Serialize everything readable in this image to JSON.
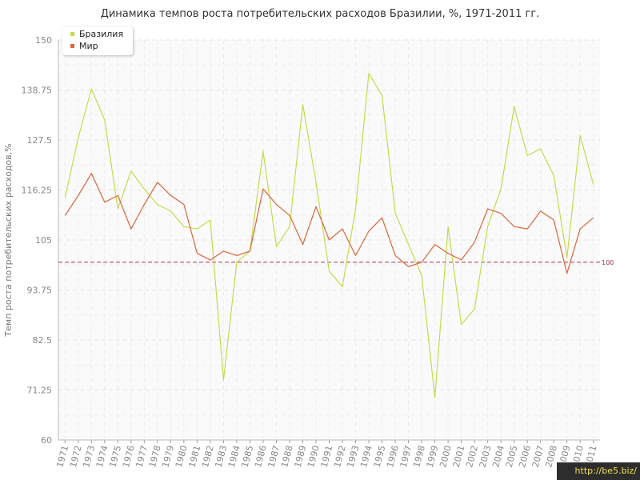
{
  "chart_data": {
    "type": "line",
    "title": "Динамика темпов роста потребительских расходов Бразилии, %, 1971-2011 гг.",
    "ylabel": "Темп роста потребительских расходов,%",
    "xlabel": "",
    "ylim": [
      60,
      150
    ],
    "yticks": [
      "60",
      "71.25",
      "82.5",
      "93.75",
      "105",
      "116.25",
      "127.5",
      "138.75",
      "150"
    ],
    "x": [
      "1971",
      "1972",
      "1973",
      "1974",
      "1975",
      "1976",
      "1977",
      "1978",
      "1979",
      "1980",
      "1981",
      "1982",
      "1983",
      "1984",
      "1985",
      "1986",
      "1987",
      "1988",
      "1989",
      "1990",
      "1991",
      "1992",
      "1993",
      "1994",
      "1995",
      "1996",
      "1997",
      "1998",
      "1999",
      "2000",
      "2001",
      "2002",
      "2003",
      "2004",
      "2005",
      "2006",
      "2007",
      "2008",
      "2009",
      "2010",
      "2011"
    ],
    "series": [
      {
        "name": "Бразилия",
        "color": "#c4dc4a",
        "values": [
          114.5,
          128,
          139,
          132,
          112,
          120.5,
          116.5,
          113,
          111.5,
          108,
          107.5,
          109.5,
          73.5,
          100,
          102.5,
          125,
          103.5,
          108,
          135.5,
          118,
          98,
          94.5,
          112,
          142.5,
          137.5,
          111,
          104,
          97,
          69.5,
          108,
          86,
          89.5,
          108,
          116.5,
          135,
          124,
          125.5,
          119.5,
          101,
          128.5,
          117.5
        ]
      },
      {
        "name": "Мир",
        "color": "#e0653a",
        "values": [
          110.5,
          115,
          120,
          113.5,
          115,
          107.5,
          113,
          118,
          115,
          113,
          102,
          100.5,
          102.5,
          101.5,
          102.5,
          116.5,
          113,
          110.5,
          104,
          112.5,
          105,
          107.5,
          101.5,
          107,
          110,
          101.5,
          99,
          100,
          104,
          102,
          100.5,
          104.5,
          112,
          111,
          108,
          107.5,
          111.5,
          109.5,
          97.5,
          107.5,
          110
        ]
      }
    ],
    "reference_line": {
      "value": 100,
      "label": "100",
      "color": "#a8364c"
    },
    "legend": {
      "placement": "top-left"
    },
    "grid": true
  },
  "watermark": "http://be5.biz/"
}
